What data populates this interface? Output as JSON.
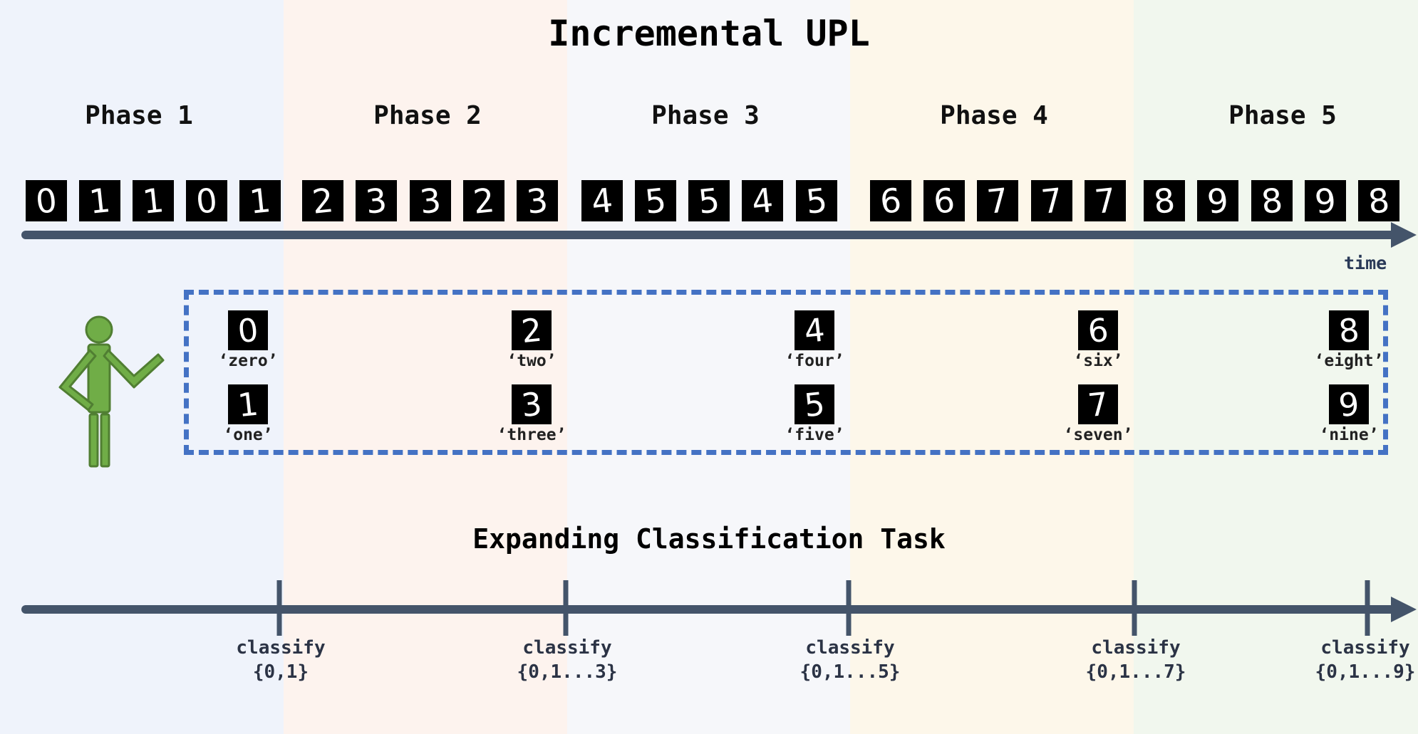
{
  "title": "Incremental UPL",
  "colors": {
    "band1": "#eff3fb",
    "band2": "#fdf3ee",
    "band3": "#f6f7fa",
    "band4": "#fdf7ea",
    "band5": "#f1f7ee",
    "axis": "#44546a",
    "dashed_box": "#4472c4",
    "person": "#70ad47",
    "person_stroke": "#507e32"
  },
  "phases": [
    {
      "label": "Phase 1",
      "stream": [
        "0",
        "1",
        "1",
        "0",
        "1"
      ],
      "examples": [
        {
          "digit": "0",
          "word": "‘zero’"
        },
        {
          "digit": "1",
          "word": "‘one’"
        }
      ]
    },
    {
      "label": "Phase 2",
      "stream": [
        "2",
        "3",
        "3",
        "2",
        "3"
      ],
      "examples": [
        {
          "digit": "2",
          "word": "‘two’"
        },
        {
          "digit": "3",
          "word": "‘three’"
        }
      ]
    },
    {
      "label": "Phase 3",
      "stream": [
        "4",
        "5",
        "5",
        "4",
        "5"
      ],
      "examples": [
        {
          "digit": "4",
          "word": "‘four’"
        },
        {
          "digit": "5",
          "word": "‘five’"
        }
      ]
    },
    {
      "label": "Phase 4",
      "stream": [
        "6",
        "6",
        "7",
        "7",
        "7"
      ],
      "examples": [
        {
          "digit": "6",
          "word": "‘six’"
        },
        {
          "digit": "7",
          "word": "‘seven’"
        }
      ]
    },
    {
      "label": "Phase 5",
      "stream": [
        "8",
        "9",
        "8",
        "9",
        "8"
      ],
      "examples": [
        {
          "digit": "8",
          "word": "‘eight’"
        },
        {
          "digit": "9",
          "word": "‘nine’"
        }
      ]
    }
  ],
  "time_label": "time",
  "task_title": "Expanding Classification Task",
  "classify": [
    {
      "line1": "classify",
      "line2": "{0,1}"
    },
    {
      "line1": "classify",
      "line2": "{0,1...3}"
    },
    {
      "line1": "classify",
      "line2": "{0,1...5}"
    },
    {
      "line1": "classify",
      "line2": "{0,1...7}"
    },
    {
      "line1": "classify",
      "line2": "{0,1...9}"
    }
  ]
}
